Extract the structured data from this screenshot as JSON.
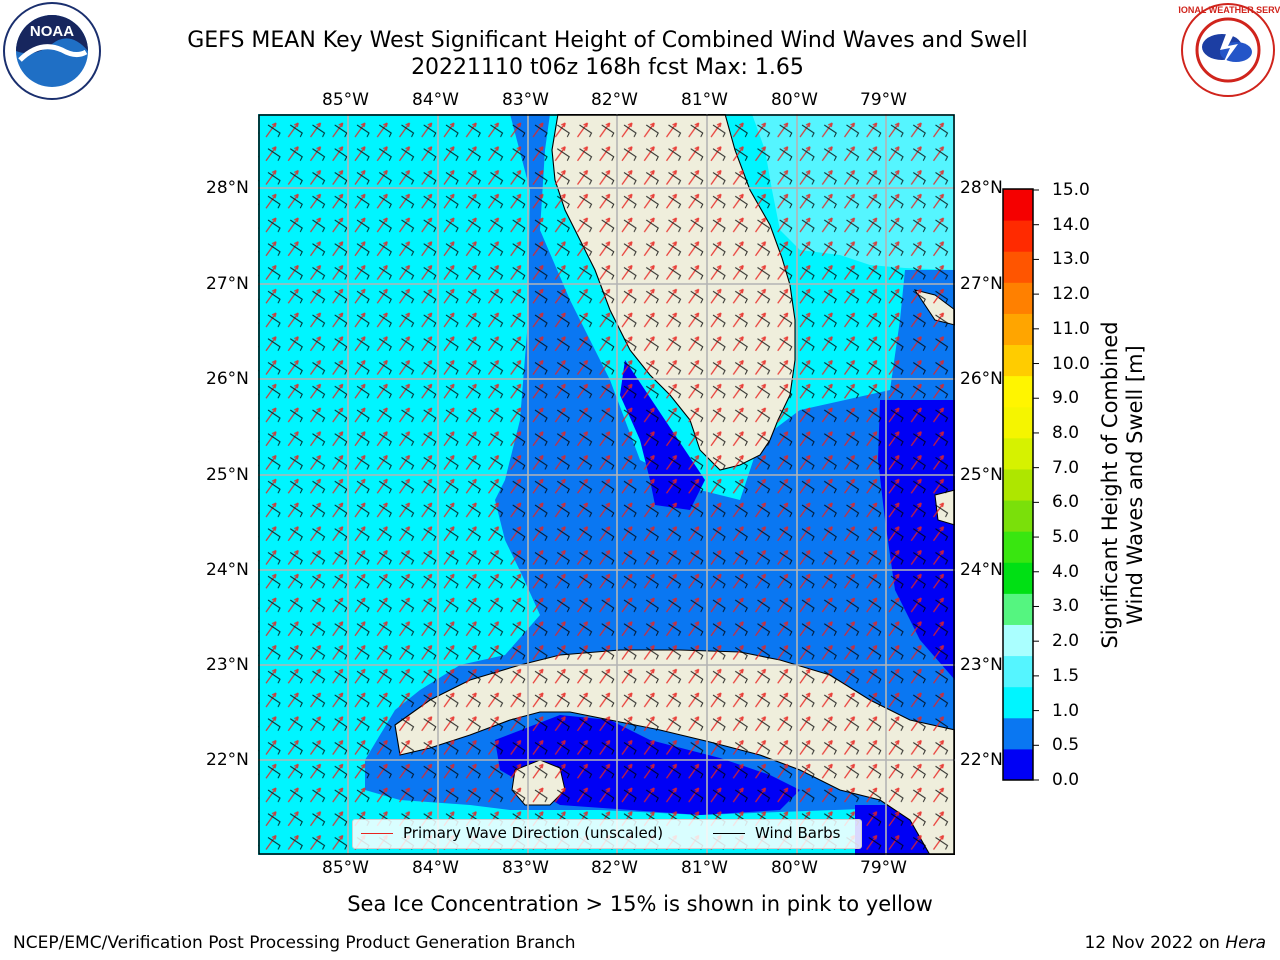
{
  "header": {
    "title_line1": "GEFS MEAN Key West Significant Height of Combined Wind Waves and Swell",
    "title_line2": "20221110 t06z 168h fcst   Max: 1.65"
  },
  "logos": {
    "noaa": {
      "name": "noaa-logo",
      "text": "NOAA"
    },
    "nws": {
      "name": "nws-logo",
      "text": "NATIONAL WEATHER SERVICE"
    }
  },
  "map": {
    "lon_ticks": [
      "85°W",
      "84°W",
      "83°W",
      "82°W",
      "81°W",
      "80°W",
      "79°W"
    ],
    "lat_ticks": [
      "28°N",
      "27°N",
      "26°N",
      "25°N",
      "24°N",
      "23°N",
      "22°N"
    ],
    "ocean_colors": {
      "c_05_10": "#0a77f2",
      "c_00_05": "#0000f5",
      "c_10_15": "#00f5ff"
    },
    "land_color": "#efeedc"
  },
  "legend": {
    "wave_label": "Primary Wave Direction (unscaled)",
    "wave_color": "#e8231f",
    "barb_label": "Wind Barbs",
    "barb_color": "#000000"
  },
  "colorbar": {
    "title_line1": "Significant Height of Combined",
    "title_line2": "Wind Waves and Swell [m]",
    "ticks": [
      "15.0",
      "14.0",
      "13.0",
      "12.0",
      "11.0",
      "10.0",
      "9.0",
      "8.0",
      "7.0",
      "6.0",
      "5.0",
      "4.0",
      "3.0",
      "2.0",
      "1.5",
      "1.0",
      "0.5",
      "0.0"
    ],
    "colors": [
      "#0000f5",
      "#0a77f2",
      "#00f5ff",
      "#55f5ff",
      "#aaffff",
      "#55f580",
      "#00e014",
      "#39e610",
      "#7ae00a",
      "#aee600",
      "#d6f200",
      "#f5f500",
      "#fff500",
      "#ffcc00",
      "#ffa500",
      "#ff8000",
      "#ff5500",
      "#ff2a00",
      "#f50000"
    ]
  },
  "footer": {
    "sea_ice_note": "Sea Ice Concentration > 15% is shown in pink to yellow",
    "credit": "NCEP/EMC/Verification Post Processing Product Generation Branch",
    "date_text": "12 Nov 2022 on ",
    "host": "Hera"
  }
}
